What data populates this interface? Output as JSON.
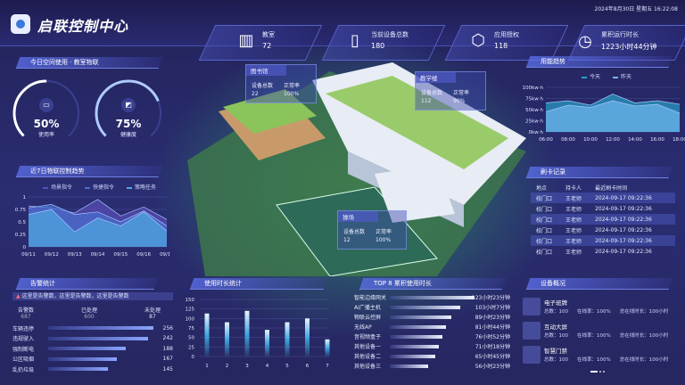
{
  "header": {
    "title": "启联控制中心",
    "datetime": "2024年8月30日  星期五  16:22:08",
    "stats": [
      {
        "label": "教室",
        "value": "72",
        "icon": "building-icon"
      },
      {
        "label": "当前设备总数",
        "value": "180",
        "icon": "device-icon"
      },
      {
        "label": "应用授权",
        "value": "118",
        "icon": "hexagon-y-icon"
      },
      {
        "label": "累积运行时长",
        "value": "1223小时44分钟",
        "icon": "clock-icon"
      }
    ]
  },
  "space": {
    "title": "今日空间使用 · 教室物联",
    "gauges": [
      {
        "value": "50%",
        "label": "使用率",
        "percent": 50,
        "icon": "monitor-icon"
      },
      {
        "value": "75%",
        "label": "健康度",
        "percent": 75,
        "icon": "tablet-icon"
      }
    ]
  },
  "trend": {
    "title": "近7日物联控制趋势"
  },
  "energy": {
    "title": "用能趋势"
  },
  "chart_data": [
    {
      "type": "area",
      "id": "iot-trend",
      "x": [
        "09/11",
        "09/12",
        "09/13",
        "09/14",
        "09/15",
        "09/16",
        "09/17"
      ],
      "ylim": [
        0,
        1
      ],
      "yticks": [
        "0",
        "0.25",
        "0.5",
        "0.75",
        "1"
      ],
      "grid": true,
      "legend": "top",
      "series": [
        {
          "name": "场景指令",
          "values": [
            0.82,
            0.78,
            0.68,
            0.95,
            0.62,
            0.8,
            0.55
          ],
          "color": "#5b4fb8"
        },
        {
          "name": "快捷指令",
          "values": [
            0.78,
            0.85,
            0.65,
            0.7,
            0.5,
            0.72,
            0.42
          ],
          "color": "#4a6fd0"
        },
        {
          "name": "策略任务",
          "values": [
            0.65,
            0.75,
            0.3,
            0.58,
            0.42,
            0.7,
            0.32
          ],
          "color": "#4fa8e0"
        }
      ]
    },
    {
      "type": "area",
      "id": "energy",
      "x": [
        "06:00",
        "08:00",
        "10:00",
        "12:00",
        "14:00",
        "16:00",
        "18:00"
      ],
      "ylim": [
        0,
        100
      ],
      "yticks": [
        "0kw·h",
        "25kw·h",
        "50kw·h",
        "75kw·h",
        "100kw·h"
      ],
      "grid": true,
      "legend": "top",
      "series": [
        {
          "name": "今天",
          "values": [
            65,
            70,
            60,
            85,
            65,
            70,
            62
          ],
          "color": "#2a9fc8"
        },
        {
          "name": "昨天",
          "values": [
            45,
            60,
            55,
            70,
            58,
            62,
            42
          ],
          "color": "#6fb8f0"
        }
      ]
    },
    {
      "type": "bar",
      "id": "usage",
      "title": "使用时长统计",
      "categories": [
        "1",
        "2",
        "3",
        "4",
        "5",
        "6",
        "7"
      ],
      "values": [
        113,
        90,
        120,
        70,
        90,
        100,
        45
      ],
      "ylim": [
        0,
        150
      ],
      "yticks": [
        "0",
        "25",
        "50",
        "75",
        "100",
        "125",
        "150"
      ],
      "grid": true
    }
  ],
  "alarm": {
    "title": "告警统计",
    "notice": "这里是告警数，这里是告警数，这里是告警数",
    "summary": [
      {
        "label": "告警数",
        "value": "687"
      },
      {
        "label": "已处理",
        "value": "600"
      },
      {
        "label": "未处理",
        "value": "87"
      }
    ],
    "items": [
      {
        "name": "车辆违停",
        "value": 256
      },
      {
        "name": "违规驶入",
        "value": 242
      },
      {
        "name": "强制断电",
        "value": 188
      },
      {
        "name": "公区吸烟",
        "value": 167
      },
      {
        "name": "乱扔垃圾",
        "value": 145
      }
    ]
  },
  "top8": {
    "title": "TOP 8 累积使用时长",
    "items": [
      {
        "name": "智能边缘网关",
        "value": "123小时23分钟",
        "hours": 123.4
      },
      {
        "name": "AI广播主机",
        "value": "103小时7分钟",
        "hours": 103.1
      },
      {
        "name": "物联云控屏",
        "value": "89小时23分钟",
        "hours": 89.4
      },
      {
        "name": "无线AP",
        "value": "81小时44分钟",
        "hours": 81.7
      },
      {
        "name": "音视频盒子",
        "value": "76小时52分钟",
        "hours": 76.9
      },
      {
        "name": "其他设备一",
        "value": "71小时18分钟",
        "hours": 71.3
      },
      {
        "name": "其他设备二",
        "value": "65小时45分钟",
        "hours": 65.75
      },
      {
        "name": "其他设备三",
        "value": "56小时23分钟",
        "hours": 56.4
      }
    ]
  },
  "cards": {
    "title": "刷卡记录",
    "headers": [
      "地点",
      "持卡人",
      "最近刷卡时间"
    ],
    "rows": [
      [
        "校门口",
        "王老师",
        "2024-09-17  09:22:36"
      ],
      [
        "校门口",
        "王老师",
        "2024-09-17  09:22:36"
      ],
      [
        "校门口",
        "王老师",
        "2024-09-17  09:22:36"
      ],
      [
        "校门口",
        "王老师",
        "2024-09-17  09:22:36"
      ],
      [
        "校门口",
        "王老师",
        "2024-09-17  09:22:36"
      ],
      [
        "校门口",
        "王老师",
        "2024-09-17  09:22:36"
      ]
    ]
  },
  "devices": {
    "title": "设备概况",
    "items": [
      {
        "name": "电子班牌",
        "total": "总数：100",
        "online": "在线率：100%",
        "duration": "总在线时长：100小时"
      },
      {
        "name": "互动大屏",
        "total": "总数：100",
        "online": "在线率：100%",
        "duration": "总在线时长：100小时"
      },
      {
        "name": "智慧门禁",
        "total": "总数：100",
        "online": "在线率：100%",
        "duration": "总在线时长：100小时"
      }
    ]
  },
  "buildings": [
    {
      "name": "图书馆",
      "k1": "设备总数",
      "v1": "22",
      "k2": "正常率",
      "v2": "100%"
    },
    {
      "name": "教学楼",
      "k1": "设备总数",
      "v1": "112",
      "k2": "正常率",
      "v2": "90%"
    },
    {
      "name": "操场",
      "k1": "设备总数",
      "v1": "12",
      "k2": "正常率",
      "v2": "100%"
    }
  ]
}
